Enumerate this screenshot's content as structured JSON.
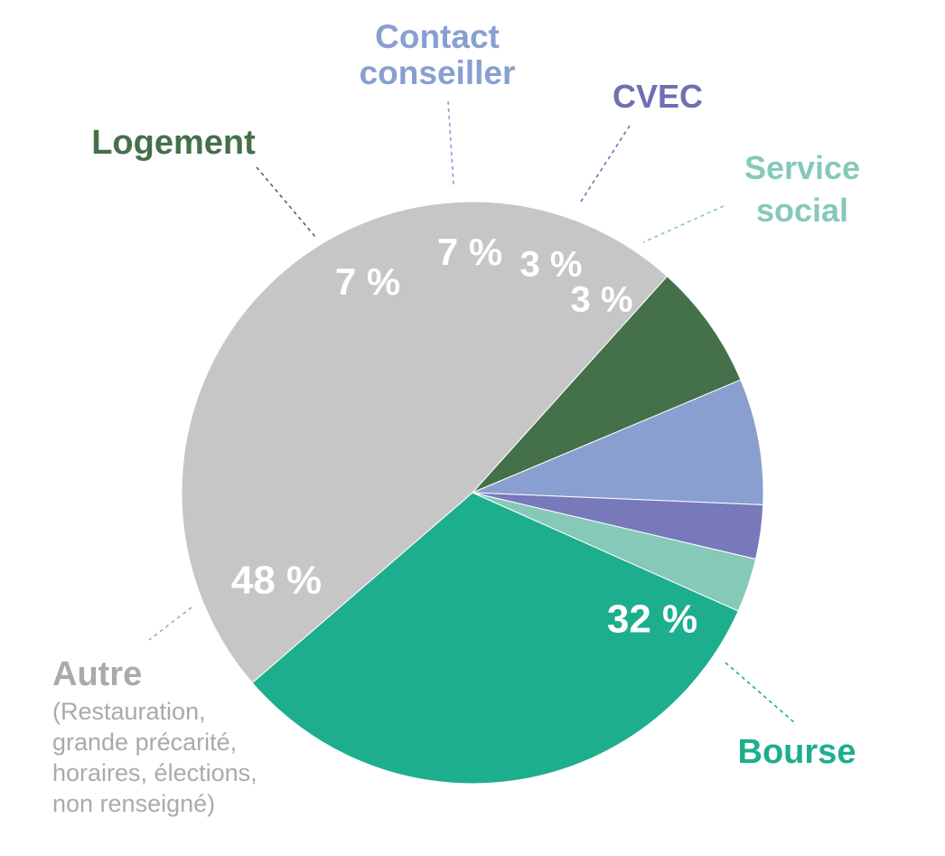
{
  "chart_data": {
    "type": "pie",
    "title": "",
    "slices": [
      {
        "name": "Bourse",
        "value": 32,
        "label": "32 %",
        "color": "#1dae8e"
      },
      {
        "name": "Autre",
        "note": [
          "(Restauration,",
          "grande précarité,",
          "horaires, élections,",
          "non renseigné)"
        ],
        "value": 48,
        "label": "48 %",
        "color": "#c6c6c6"
      },
      {
        "name": "Logement",
        "value": 7,
        "label": "7 %",
        "color": "#44704a"
      },
      {
        "name": "Contact conseiller",
        "name_lines": [
          "Contact",
          "conseiller"
        ],
        "value": 7,
        "label": "7 %",
        "color": "#889fd0"
      },
      {
        "name": "CVEC",
        "value": 3,
        "label": "3 %",
        "color": "#7779bb"
      },
      {
        "name": "Service social",
        "name_lines": [
          "Service",
          "social"
        ],
        "value": 3,
        "label": "3 %",
        "color": "#86c9b9"
      }
    ],
    "label_colors": {
      "Bourse": "#1dae8e",
      "Autre": "#aaaaaa",
      "Logement": "#44704a",
      "Contact conseiller": "#889fd0",
      "CVEC": "#6f70b2",
      "Service social": "#86c9b9"
    }
  }
}
